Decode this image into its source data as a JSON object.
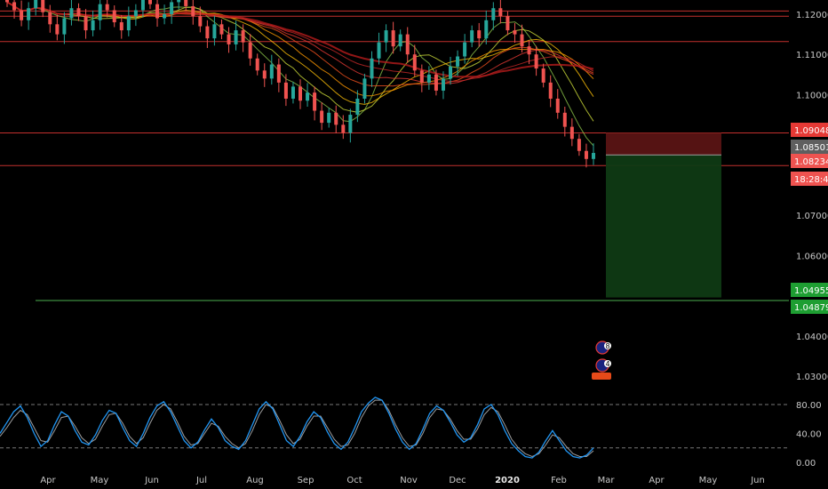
{
  "chart_data": {
    "type": "candlestick",
    "price_axis": {
      "ticks": [
        1.12,
        1.11,
        1.1,
        1.07,
        1.06,
        1.04,
        1.03
      ],
      "tick_labels": [
        "1.12000",
        "1.11000",
        "1.10000",
        "1.07000",
        "1.06000",
        "1.04000",
        "1.03000"
      ]
    },
    "price_tags": [
      {
        "label": "1.09048",
        "value": 1.09048,
        "style": "red"
      },
      {
        "label": "1.08501",
        "value": 1.08501,
        "style": "gray"
      },
      {
        "label": "1.08234",
        "value": 1.08234,
        "style": "lightred"
      },
      {
        "label": "18:28:46",
        "value": 1.0795,
        "style": "lightred"
      },
      {
        "label": "1.04955",
        "value": 1.04955,
        "style": "green"
      },
      {
        "label": "1.04879",
        "value": 1.04879,
        "style": "green"
      }
    ],
    "horizontal_levels": [
      1.1208,
      1.1195,
      1.1132,
      1.09048,
      1.08234
    ],
    "support_level": 1.04879,
    "position": {
      "entry": 1.08501,
      "stop_loss": 1.09048,
      "take_profit": 1.04955
    },
    "candles": [
      1.123,
      1.121,
      1.1185,
      1.1215,
      1.124,
      1.1205,
      1.1175,
      1.115,
      1.119,
      1.1215,
      1.1195,
      1.116,
      1.1185,
      1.1225,
      1.121,
      1.118,
      1.116,
      1.1195,
      1.121,
      1.124,
      1.1225,
      1.119,
      1.12,
      1.123,
      1.1245,
      1.122,
      1.1195,
      1.117,
      1.114,
      1.1175,
      1.115,
      1.1125,
      1.116,
      1.113,
      1.109,
      1.106,
      1.104,
      1.1075,
      1.103,
      1.099,
      1.102,
      1.0985,
      1.1005,
      1.096,
      1.093,
      1.0955,
      1.0925,
      1.0905,
      1.095,
      1.099,
      1.104,
      1.109,
      1.113,
      1.116,
      1.112,
      1.115,
      1.11,
      1.106,
      1.103,
      1.105,
      1.101,
      1.104,
      1.107,
      1.1095,
      1.113,
      1.116,
      1.114,
      1.1185,
      1.1215,
      1.1195,
      1.116,
      1.115,
      1.112,
      1.11,
      1.1065,
      1.103,
      1.099,
      1.0955,
      1.092,
      1.089,
      1.086,
      1.084,
      1.0855
    ],
    "oscillator": {
      "ticks": [
        80,
        40,
        0
      ],
      "tick_labels": [
        "80.00",
        "40.00",
        "0.00"
      ],
      "overbought": 80,
      "oversold": 20,
      "fast": [
        40,
        55,
        70,
        78,
        62,
        40,
        22,
        30,
        52,
        70,
        64,
        44,
        28,
        24,
        38,
        58,
        72,
        68,
        48,
        30,
        22,
        40,
        62,
        78,
        84,
        70,
        50,
        30,
        20,
        28,
        45,
        60,
        48,
        30,
        22,
        18,
        30,
        52,
        74,
        84,
        74,
        52,
        30,
        22,
        36,
        56,
        70,
        62,
        42,
        26,
        18,
        28,
        48,
        70,
        82,
        90,
        86,
        68,
        46,
        28,
        18,
        26,
        46,
        68,
        78,
        72,
        56,
        38,
        28,
        34,
        52,
        74,
        80,
        66,
        44,
        26,
        16,
        8,
        6,
        14,
        30,
        44,
        30,
        16,
        8,
        6,
        10,
        20
      ],
      "slow": [
        36,
        48,
        62,
        72,
        66,
        48,
        30,
        28,
        44,
        62,
        64,
        50,
        34,
        26,
        32,
        50,
        66,
        68,
        54,
        36,
        26,
        34,
        54,
        72,
        80,
        74,
        56,
        36,
        24,
        26,
        40,
        54,
        50,
        36,
        26,
        20,
        26,
        44,
        66,
        80,
        76,
        58,
        38,
        26,
        32,
        50,
        64,
        64,
        48,
        32,
        22,
        24,
        40,
        62,
        78,
        86,
        86,
        72,
        52,
        34,
        22,
        24,
        40,
        62,
        74,
        72,
        60,
        44,
        32,
        32,
        46,
        66,
        76,
        70,
        52,
        32,
        20,
        12,
        8,
        12,
        24,
        38,
        34,
        22,
        12,
        8,
        8,
        16
      ]
    },
    "x_axis": {
      "labels": [
        "Apr",
        "May",
        "Jun",
        "Jul",
        "Aug",
        "Sep",
        "Oct",
        "Nov",
        "Dec",
        "2020",
        "Feb",
        "Mar",
        "Apr",
        "May",
        "Jun"
      ],
      "bold": [
        "2020"
      ]
    },
    "event_badges": [
      {
        "label": "8"
      },
      {
        "label": "4"
      }
    ],
    "colors": {
      "up": "#26a69a",
      "down": "#ef5350",
      "level": "#e53935",
      "ma": "#c62828",
      "oscillator_fast": "#2196f3",
      "oscillator_slow": "#9e9e9e",
      "loss_zone": "#5a1414",
      "profit_zone": "#0f3a14"
    }
  }
}
